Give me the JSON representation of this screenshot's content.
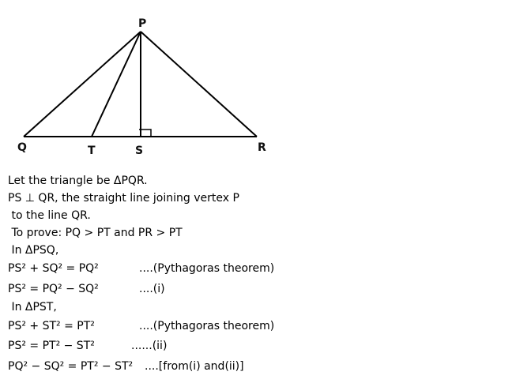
{
  "diagram": {
    "vertex_labels": {
      "P": "P",
      "Q": "Q",
      "T": "T",
      "S": "S",
      "R": "R"
    }
  },
  "proof": [
    {
      "text": "Let the triangle be ΔPQR.",
      "note": ""
    },
    {
      "text": "PS ⊥ QR, the straight line joining vertex P",
      "note": ""
    },
    {
      "text": " to the line QR.",
      "note": ""
    },
    {
      "text": " To prove: PQ > PT and PR > PT",
      "note": ""
    },
    {
      "text": " In ΔPSQ,",
      "note": ""
    },
    {
      "text": "PS² + SQ² = PQ²",
      "note": "....(Pythagoras theorem)"
    },
    {
      "text": "PS² = PQ² − SQ²",
      "note": "....(i)"
    },
    {
      "text": " In ΔPST,",
      "note": ""
    },
    {
      "text": "PS² + ST² = PT²",
      "note": "....(Pythagoras theorem)"
    },
    {
      "text": "PS² = PT² − ST²",
      "note": "......(ii)"
    },
    {
      "text": "PQ² − SQ² = PT² − ST²",
      "note": "....[from(i) and(ii)]"
    }
  ]
}
